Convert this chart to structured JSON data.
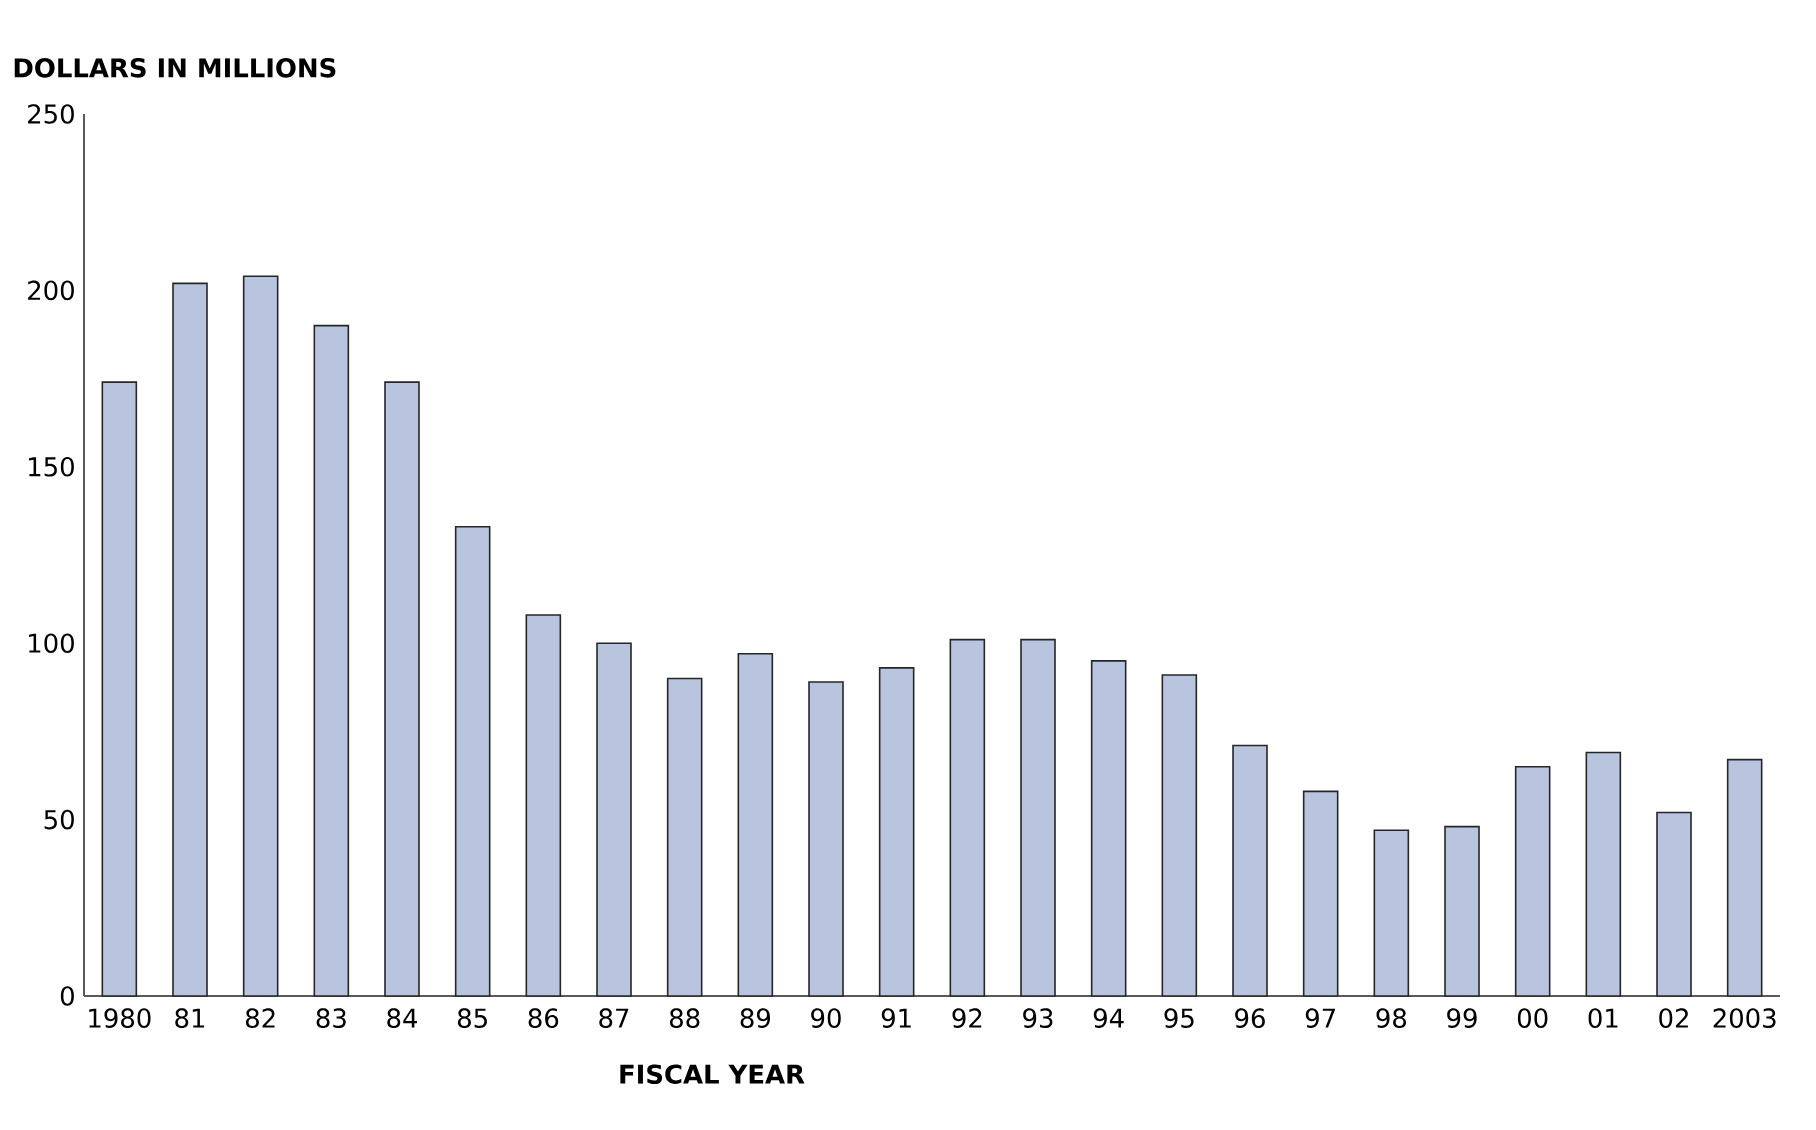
{
  "chart_data": {
    "type": "bar",
    "xlabel": "FISCAL YEAR",
    "ylabel": "DOLLARS IN MILLIONS",
    "categories": [
      "1980",
      "81",
      "82",
      "83",
      "84",
      "85",
      "86",
      "87",
      "88",
      "89",
      "90",
      "91",
      "92",
      "93",
      "94",
      "95",
      "96",
      "97",
      "98",
      "99",
      "00",
      "01",
      "02",
      "2003"
    ],
    "values": [
      174,
      202,
      204,
      190,
      174,
      133,
      108,
      100,
      90,
      97,
      89,
      93,
      101,
      101,
      95,
      91,
      71,
      58,
      47,
      48,
      65,
      69,
      52,
      67
    ],
    "color": "#b9c5de",
    "ylim": [
      0,
      250
    ],
    "yticks": [
      0,
      50,
      100,
      150,
      200,
      250
    ],
    "grid": false
  }
}
